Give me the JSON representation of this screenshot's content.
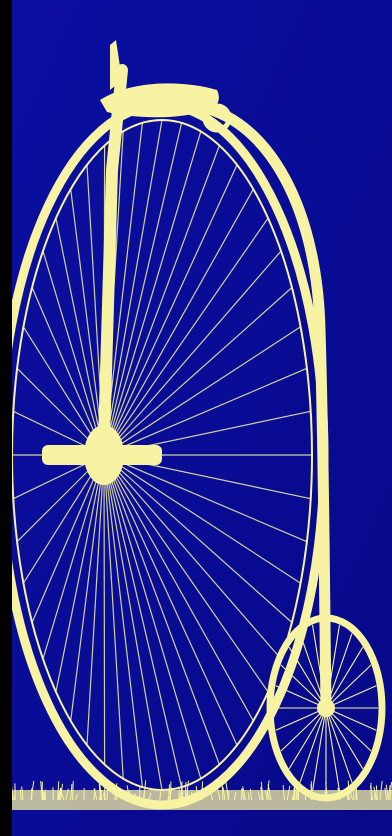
{
  "image": {
    "subject": "penny-farthing-bicycle-icon",
    "colors": {
      "background": "#0B0FA0",
      "background_dark": "#07098A",
      "foreground": "#F7F3A3",
      "edge": "#000000"
    }
  }
}
